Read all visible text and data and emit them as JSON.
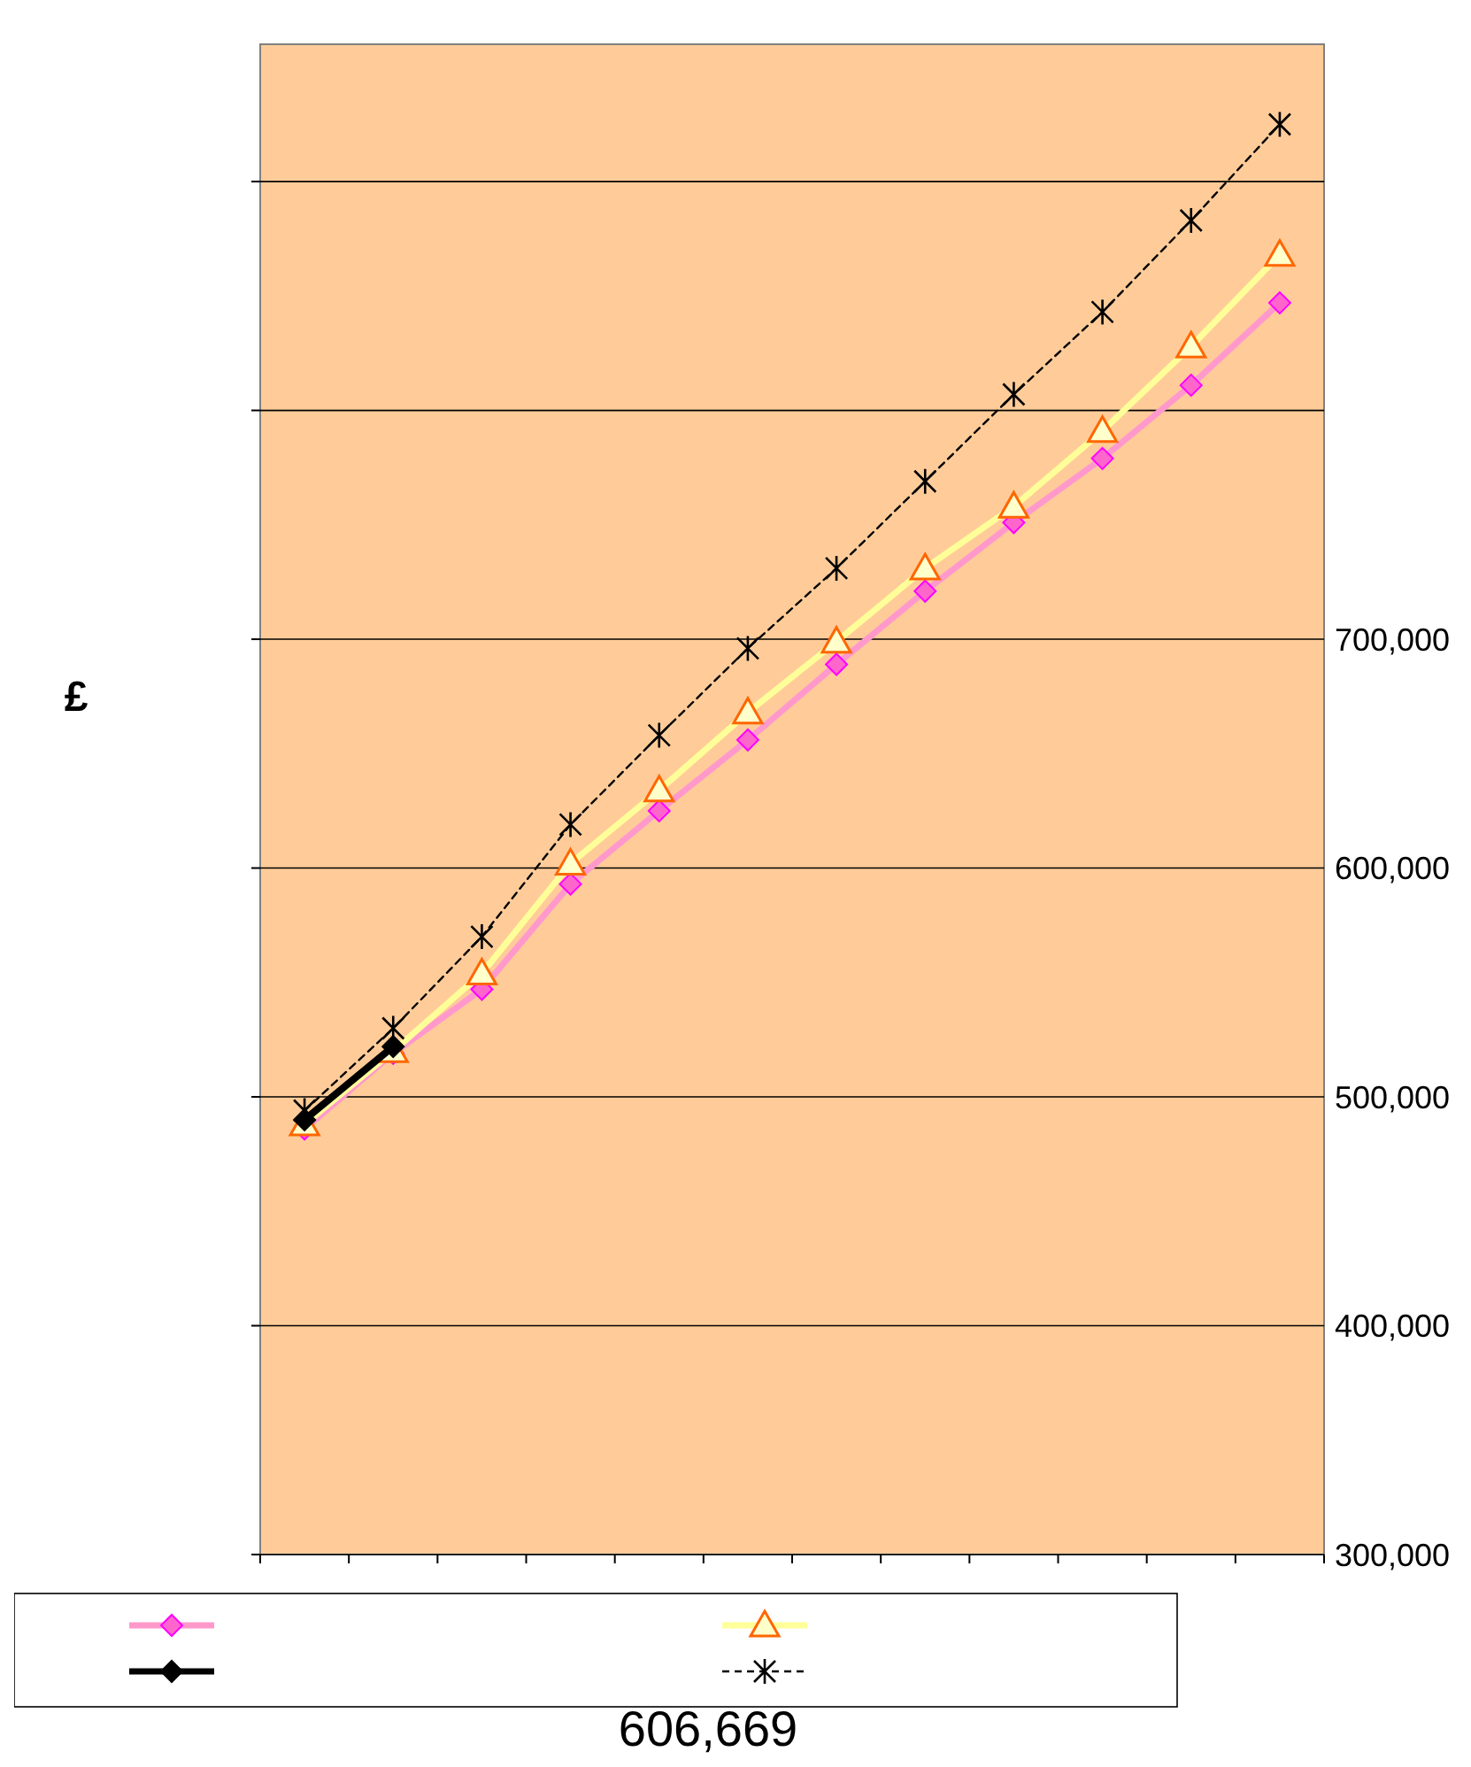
{
  "chart_data": {
    "type": "line",
    "ylabel": "£",
    "categories": [
      null,
      null,
      null,
      null,
      null,
      null,
      null,
      null,
      null,
      null,
      null,
      null
    ],
    "series": [
      {
        "color": "#ff99cc",
        "marker": "diamond",
        "values": [
          486000,
          519000,
          547000,
          593000,
          625000,
          656000,
          689000,
          721000,
          751000,
          779000,
          811000,
          847000
        ]
      },
      {
        "color": "#ffff99",
        "marker": "triangle",
        "values": [
          488000,
          520000,
          554000,
          602000,
          634000,
          668000,
          699000,
          731000,
          758000,
          791000,
          828000,
          868000
        ]
      },
      {
        "color": "#000000",
        "marker": "diamond",
        "values": [
          490000,
          522000,
          null,
          null,
          null,
          null,
          null,
          null,
          null,
          null,
          null,
          null
        ]
      },
      {
        "color": "#000000",
        "marker": "cross",
        "line_style": "dashed",
        "values": [
          494000,
          530000,
          570000,
          619000,
          658000,
          696000,
          731000,
          769000,
          807000,
          843000,
          883000,
          925000
        ]
      }
    ],
    "ylim": [
      300000,
      960000
    ],
    "yticks": [
      {
        "value": 300000,
        "label": "300,000"
      },
      {
        "value": 400000,
        "label": "400,000"
      },
      {
        "value": 500000,
        "label": "500,000"
      },
      {
        "value": 600000,
        "label": "600,000"
      },
      {
        "value": 700000,
        "label": "700,000"
      },
      {
        "value": 800000,
        "label": null
      },
      {
        "value": 900000,
        "label": null
      }
    ],
    "grid": "y",
    "annotations": [
      "606,669"
    ]
  }
}
